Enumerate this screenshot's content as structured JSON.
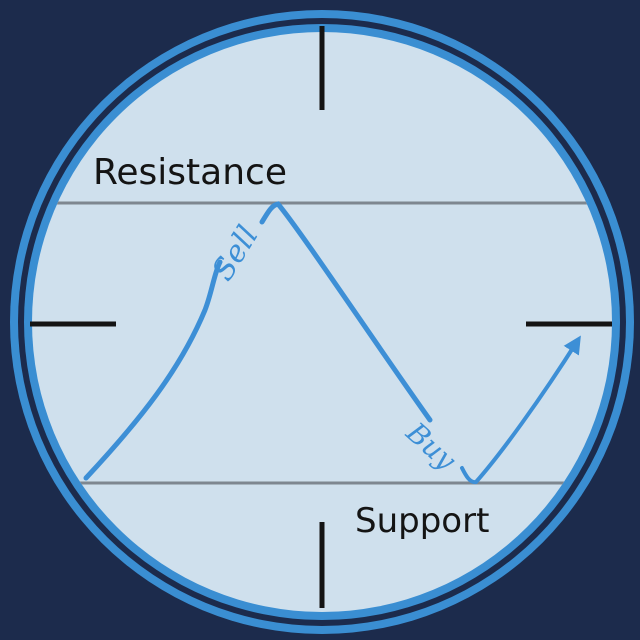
{
  "diagram": {
    "levels": {
      "resistance_label": "Resistance",
      "support_label": "Support"
    },
    "signals": {
      "sell_label": "Sell",
      "buy_label": "Buy"
    },
    "colors": {
      "background": "#1c2b4c",
      "ring_outer": "#3a8ed2",
      "ring_gap": "#1c2b4c",
      "scope_fill": "#cfe0ed",
      "level_line": "#7e8790",
      "price_path": "#3d8fd6",
      "crosshair": "#141414",
      "label_text": "#141414"
    },
    "icons": {
      "crosshair": "crosshair-icon",
      "trend_arrow": "arrow-up-right-icon"
    }
  }
}
